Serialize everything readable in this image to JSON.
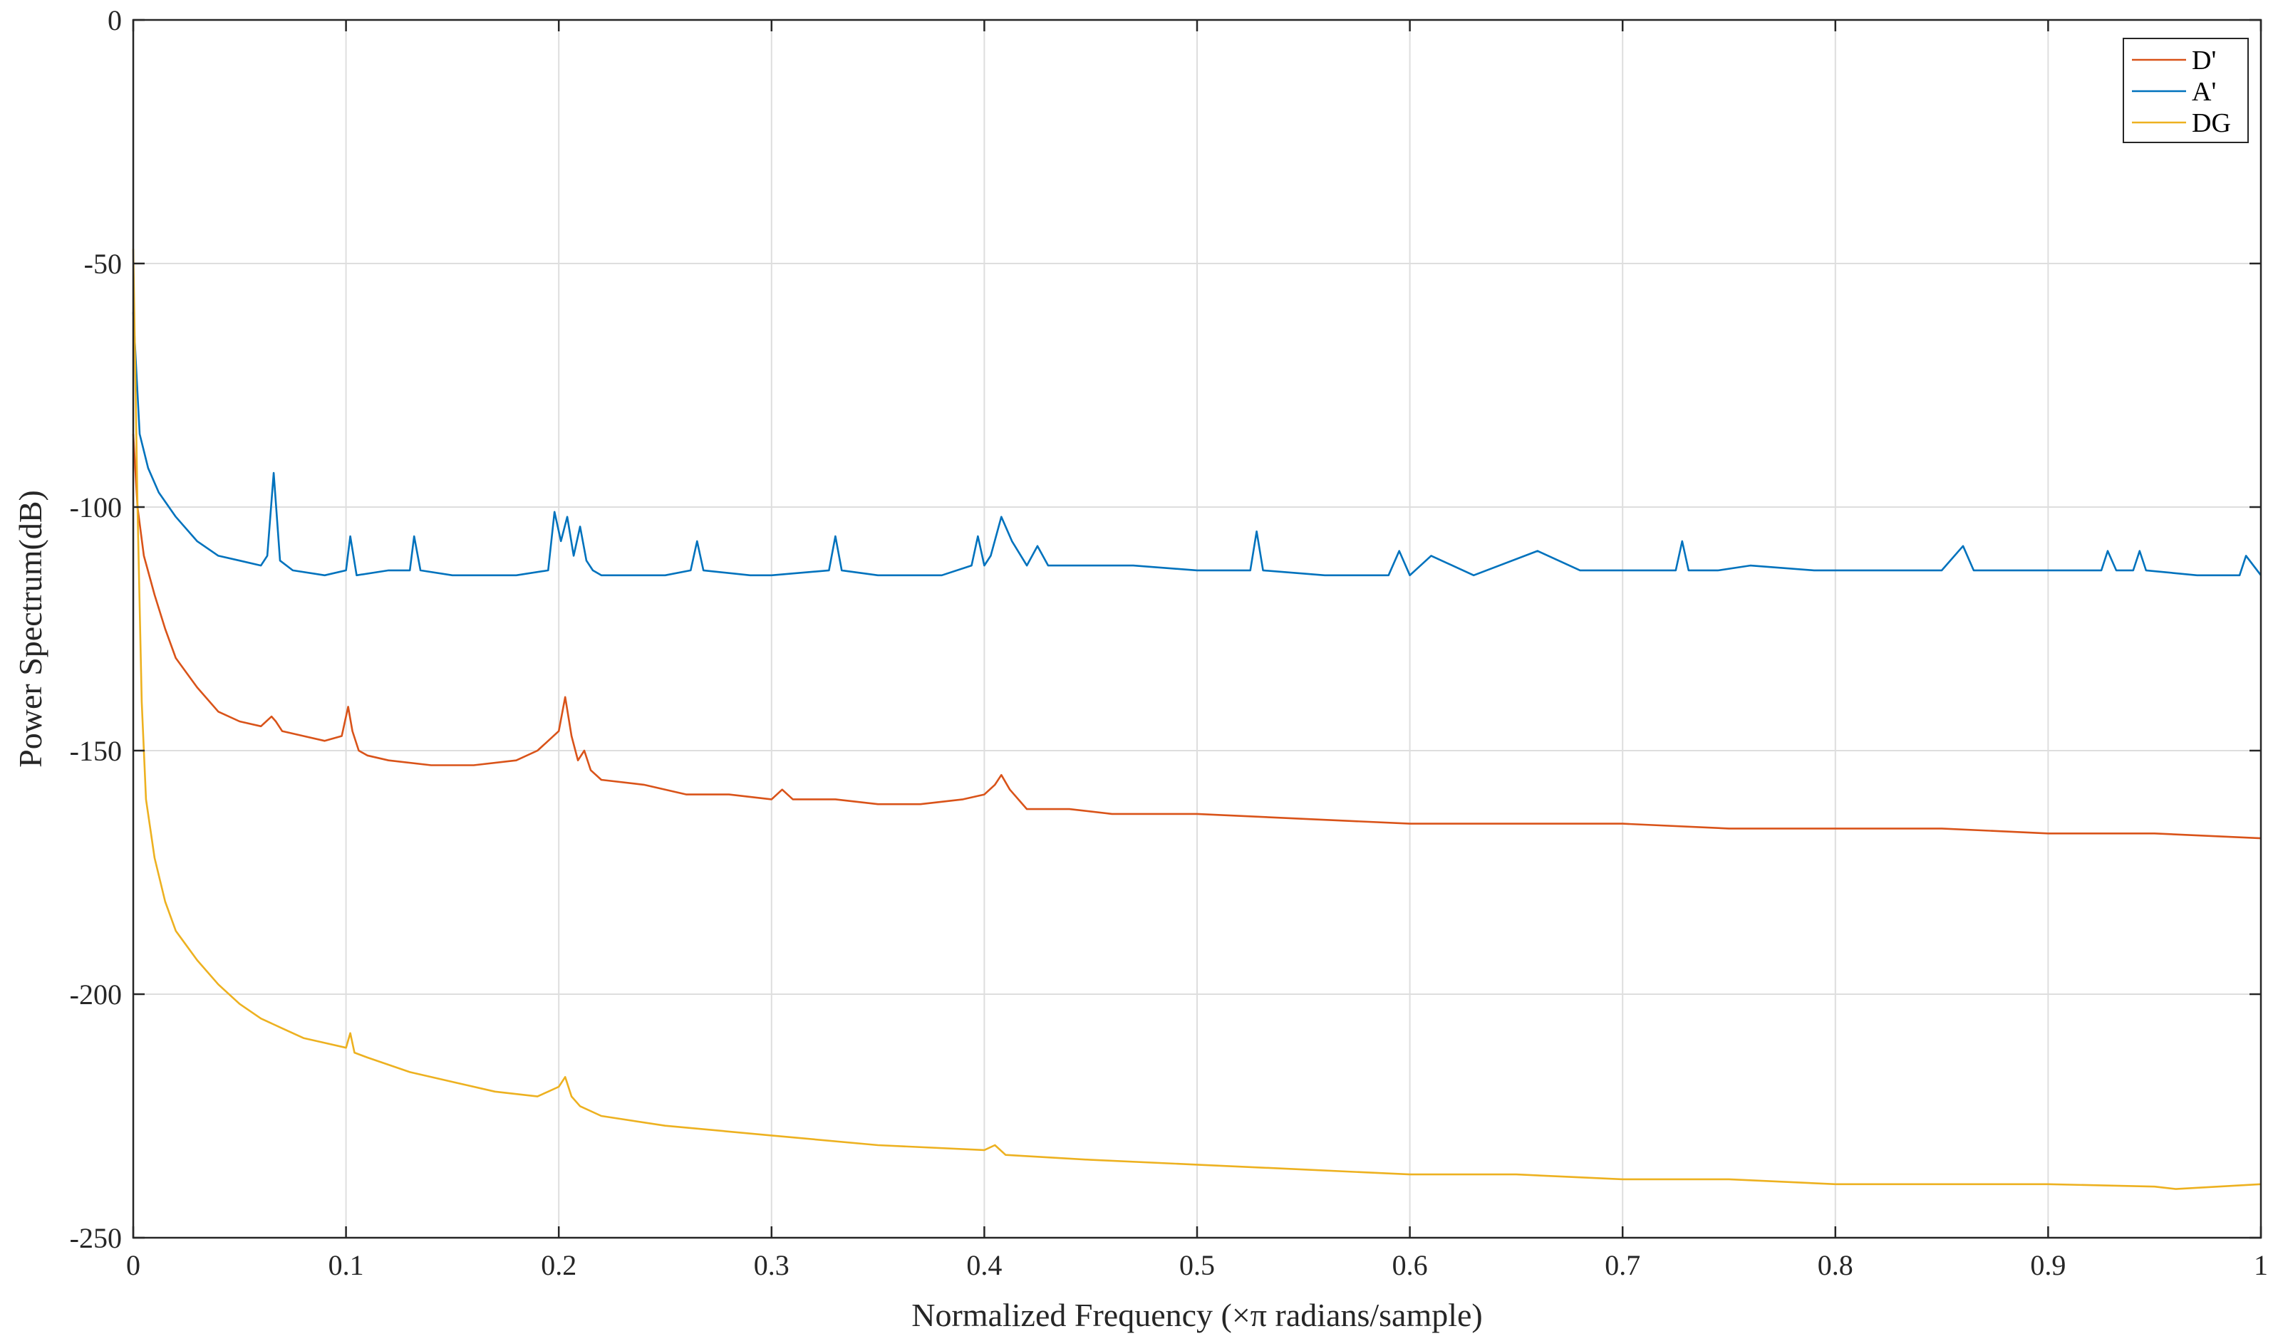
{
  "chart_data": {
    "type": "line",
    "title": "",
    "xlabel": "Normalized Frequency (×π radians/sample)",
    "ylabel": "Power Spectrum(dB)",
    "xlim": [
      0,
      1
    ],
    "ylim": [
      -250,
      0
    ],
    "xticks": [
      0,
      0.1,
      0.2,
      0.3,
      0.4,
      0.5,
      0.6,
      0.7,
      0.8,
      0.9,
      1
    ],
    "xtick_labels": [
      "0",
      "0.1",
      "0.2",
      "0.3",
      "0.4",
      "0.5",
      "0.6",
      "0.7",
      "0.8",
      "0.9",
      "1"
    ],
    "yticks": [
      0,
      -50,
      -100,
      -150,
      -200,
      -250
    ],
    "ytick_labels": [
      "0",
      "-50",
      "-100",
      "-150",
      "-200",
      "-250"
    ],
    "grid": true,
    "legend_position": "top-right",
    "series": [
      {
        "name": "D'",
        "color": "#D95319",
        "x": [
          0.0,
          0.002,
          0.005,
          0.01,
          0.015,
          0.02,
          0.03,
          0.04,
          0.05,
          0.06,
          0.065,
          0.067,
          0.07,
          0.08,
          0.09,
          0.098,
          0.101,
          0.103,
          0.106,
          0.11,
          0.12,
          0.14,
          0.16,
          0.18,
          0.19,
          0.195,
          0.2,
          0.203,
          0.206,
          0.209,
          0.212,
          0.215,
          0.22,
          0.24,
          0.26,
          0.28,
          0.3,
          0.305,
          0.31,
          0.33,
          0.35,
          0.37,
          0.39,
          0.4,
          0.405,
          0.408,
          0.412,
          0.42,
          0.44,
          0.46,
          0.48,
          0.5,
          0.55,
          0.6,
          0.65,
          0.7,
          0.75,
          0.8,
          0.85,
          0.9,
          0.95,
          1.0
        ],
        "y": [
          -85,
          -100,
          -110,
          -118,
          -125,
          -131,
          -137,
          -142,
          -144,
          -145,
          -143,
          -144,
          -146,
          -147,
          -148,
          -147,
          -141,
          -146,
          -150,
          -151,
          -152,
          -153,
          -153,
          -152,
          -150,
          -148,
          -146,
          -139,
          -147,
          -152,
          -150,
          -154,
          -156,
          -157,
          -159,
          -159,
          -160,
          -158,
          -160,
          -160,
          -161,
          -161,
          -160,
          -159,
          -157,
          -155,
          -158,
          -162,
          -162,
          -163,
          -163,
          -163,
          -164,
          -165,
          -165,
          -165,
          -166,
          -166,
          -166,
          -167,
          -167,
          -168
        ]
      },
      {
        "name": "A'",
        "color": "#0072BD",
        "x": [
          0.0,
          0.003,
          0.007,
          0.012,
          0.02,
          0.03,
          0.04,
          0.05,
          0.06,
          0.063,
          0.066,
          0.069,
          0.075,
          0.09,
          0.1,
          0.102,
          0.105,
          0.12,
          0.13,
          0.132,
          0.135,
          0.15,
          0.18,
          0.195,
          0.198,
          0.201,
          0.204,
          0.207,
          0.21,
          0.213,
          0.216,
          0.22,
          0.25,
          0.262,
          0.265,
          0.268,
          0.29,
          0.3,
          0.327,
          0.33,
          0.333,
          0.35,
          0.38,
          0.394,
          0.397,
          0.4,
          0.403,
          0.408,
          0.413,
          0.42,
          0.425,
          0.43,
          0.45,
          0.47,
          0.5,
          0.525,
          0.528,
          0.531,
          0.56,
          0.59,
          0.595,
          0.6,
          0.61,
          0.63,
          0.66,
          0.68,
          0.7,
          0.725,
          0.728,
          0.731,
          0.745,
          0.76,
          0.79,
          0.82,
          0.85,
          0.86,
          0.865,
          0.9,
          0.925,
          0.928,
          0.932,
          0.94,
          0.943,
          0.946,
          0.97,
          0.99,
          0.993,
          1.0
        ],
        "y": [
          -60,
          -85,
          -92,
          -97,
          -102,
          -107,
          -110,
          -111,
          -112,
          -110,
          -93,
          -111,
          -113,
          -114,
          -113,
          -106,
          -114,
          -113,
          -113,
          -106,
          -113,
          -114,
          -114,
          -113,
          -101,
          -107,
          -102,
          -110,
          -104,
          -111,
          -113,
          -114,
          -114,
          -113,
          -107,
          -113,
          -114,
          -114,
          -113,
          -106,
          -113,
          -114,
          -114,
          -112,
          -106,
          -112,
          -110,
          -102,
          -107,
          -112,
          -108,
          -112,
          -112,
          -112,
          -113,
          -113,
          -105,
          -113,
          -114,
          -114,
          -109,
          -114,
          -110,
          -114,
          -109,
          -113,
          -113,
          -113,
          -107,
          -113,
          -113,
          -112,
          -113,
          -113,
          -113,
          -108,
          -113,
          -113,
          -113,
          -109,
          -113,
          -113,
          -109,
          -113,
          -114,
          -114,
          -110,
          -114
        ]
      },
      {
        "name": "DG",
        "color": "#EDB120",
        "x": [
          0.0,
          0.002,
          0.004,
          0.006,
          0.01,
          0.015,
          0.02,
          0.03,
          0.04,
          0.05,
          0.06,
          0.07,
          0.08,
          0.09,
          0.1,
          0.102,
          0.104,
          0.11,
          0.13,
          0.15,
          0.17,
          0.19,
          0.195,
          0.2,
          0.203,
          0.206,
          0.21,
          0.22,
          0.25,
          0.3,
          0.35,
          0.4,
          0.405,
          0.41,
          0.45,
          0.5,
          0.55,
          0.6,
          0.65,
          0.7,
          0.75,
          0.8,
          0.85,
          0.9,
          0.95,
          0.96,
          0.98,
          1.0
        ],
        "y": [
          -47,
          -100,
          -140,
          -160,
          -172,
          -181,
          -187,
          -193,
          -198,
          -202,
          -205,
          -207,
          -209,
          -210,
          -211,
          -208,
          -212,
          -213,
          -216,
          -218,
          -220,
          -221,
          -220,
          -219,
          -217,
          -221,
          -223,
          -225,
          -227,
          -229,
          -231,
          -232,
          -231,
          -233,
          -234,
          -235,
          -236,
          -237,
          -237,
          -238,
          -238,
          -239,
          -239,
          -239,
          -239.5,
          -240,
          -239.5,
          -239
        ]
      }
    ]
  }
}
